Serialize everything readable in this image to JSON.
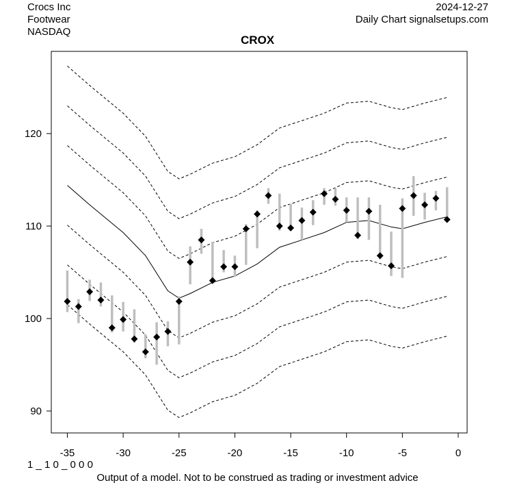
{
  "header": {
    "company": "Crocs Inc",
    "sector": "Footwear",
    "exchange": "NASDAQ",
    "date": "2024-12-27",
    "source": "Daily Chart signalsetups.com"
  },
  "footer": {
    "code": "1 _ 1 0 _ 0 0 0",
    "disclaimer": "Output of a model. Not to be construed as trading or investment advice"
  },
  "chart_data": {
    "type": "scatter",
    "title": "CROX",
    "xlim": [
      -35.5,
      0
    ],
    "ylim": [
      87.6,
      128.8
    ],
    "xticks": [
      -35,
      -30,
      -25,
      -20,
      -15,
      -10,
      -5,
      0
    ],
    "yticks": [
      90,
      100,
      110,
      120
    ],
    "x": [
      -35,
      -34,
      -33,
      -32,
      -31,
      -30,
      -29,
      -28,
      -27,
      -26,
      -25,
      -24,
      -23,
      -22,
      -21,
      -20,
      -19,
      -18,
      -17,
      -16,
      -15,
      -14,
      -13,
      -12,
      -11,
      -10,
      -9,
      -8,
      -7,
      -6,
      -5,
      -4,
      -3,
      -2,
      -1
    ],
    "close": [
      101.85,
      101.3,
      102.9,
      102.0,
      99.0,
      99.9,
      97.8,
      96.4,
      98.0,
      98.6,
      101.85,
      106.1,
      108.5,
      104.1,
      105.6,
      105.6,
      109.7,
      111.3,
      113.3,
      110.0,
      109.8,
      110.6,
      111.5,
      113.5,
      112.9,
      111.7,
      109.0,
      111.6,
      106.8,
      105.7,
      111.9,
      113.3,
      112.3,
      113.0,
      110.7
    ],
    "high": [
      105.2,
      102.1,
      104.2,
      103.9,
      102.5,
      101.8,
      101.0,
      98.3,
      99.6,
      99.7,
      102.4,
      107.8,
      109.7,
      108.3,
      107.4,
      106.8,
      110.2,
      111.7,
      114.1,
      113.5,
      112.4,
      112.0,
      112.8,
      114.1,
      114.1,
      113.1,
      113.1,
      113.1,
      112.3,
      109.4,
      113.0,
      115.4,
      113.6,
      113.8,
      114.2
    ],
    "low": [
      100.7,
      99.5,
      101.9,
      101.3,
      98.5,
      98.6,
      97.4,
      95.7,
      95.0,
      97.0,
      97.2,
      103.7,
      107.0,
      104.1,
      105.0,
      104.5,
      105.8,
      107.6,
      112.4,
      109.5,
      109.5,
      108.5,
      110.1,
      112.3,
      112.2,
      110.4,
      108.6,
      108.5,
      106.4,
      104.6,
      104.4,
      111.1,
      110.7,
      111.7,
      110.9
    ],
    "model_line": {
      "x": [
        -35,
        -33,
        -30,
        -28,
        -26,
        -25,
        -24,
        -22,
        -20,
        -18,
        -16,
        -14,
        -12,
        -10,
        -8,
        -6,
        -5,
        -3,
        -1
      ],
      "y": [
        114.4,
        112.3,
        109.3,
        106.8,
        103.0,
        102.2,
        102.7,
        103.9,
        104.6,
        105.9,
        107.7,
        108.5,
        109.3,
        110.4,
        110.6,
        109.9,
        109.7,
        110.4,
        111.0
      ]
    },
    "band_offsets": [
      -12.9,
      -8.6,
      -4.3,
      4.3,
      8.6,
      12.9
    ],
    "colors": {
      "range_bar": "#bebebe",
      "close_marker": "#000000",
      "model_line": "#000000",
      "band": "#000000"
    }
  }
}
